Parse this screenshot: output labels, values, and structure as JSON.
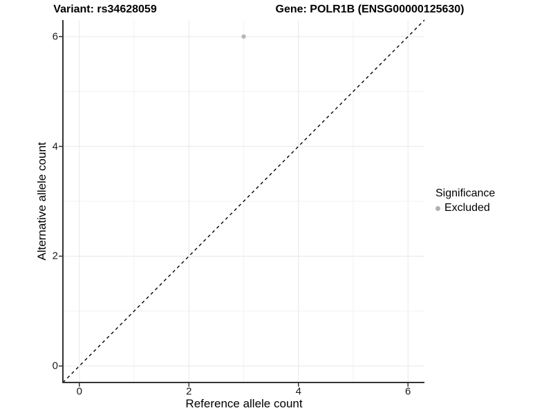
{
  "chart_data": {
    "type": "scatter",
    "title_left": "Variant: rs34628059",
    "title_right": "Gene: POLR1B (ENSG00000125630)",
    "xlabel": "Reference allele count",
    "ylabel": "Alternative allele count",
    "xlim": [
      -0.3,
      6.3
    ],
    "ylim": [
      -0.3,
      6.3
    ],
    "x_ticks": [
      0,
      2,
      4,
      6
    ],
    "y_ticks": [
      0,
      2,
      4,
      6
    ],
    "x_minor_gridlines": [
      1,
      3,
      5
    ],
    "y_minor_gridlines": [
      1,
      3,
      5
    ],
    "grid": "major-and-minor",
    "identity_line": {
      "style": "dashed",
      "color": "#000000",
      "x1": -0.3,
      "y1": -0.3,
      "x2": 6.3,
      "y2": 6.3
    },
    "series": [
      {
        "name": "Excluded",
        "color": "#b8b8b8",
        "points": [
          {
            "x": 3,
            "y": 6
          }
        ]
      }
    ],
    "legend": {
      "title": "Significance",
      "position": "right",
      "entries": [
        {
          "label": "Excluded",
          "color": "#b0b0b0"
        }
      ]
    }
  }
}
